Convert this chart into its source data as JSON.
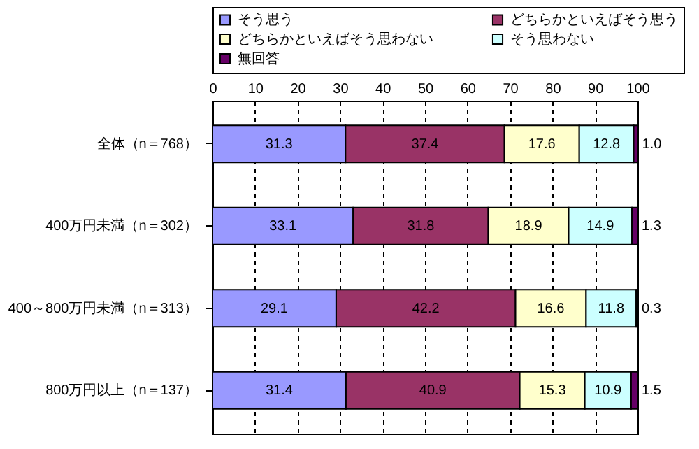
{
  "chart_data": {
    "type": "bar",
    "orientation": "horizontal",
    "stacked": true,
    "grid": "x",
    "legend": "top",
    "categories": [
      "全体（n＝768）",
      "400万円未満（n＝302）",
      "400～800万円未満（n＝313）",
      "800万円以上（n＝137）"
    ],
    "series": [
      {
        "name": "そう思う",
        "color": "#9999ff",
        "values": [
          31.3,
          33.1,
          29.1,
          31.4
        ],
        "value_labels": [
          "31.3",
          "33.1",
          "29.1",
          "31.4"
        ]
      },
      {
        "name": "どちらかといえばそう思う",
        "color": "#993366",
        "values": [
          37.4,
          31.8,
          42.2,
          40.9
        ],
        "value_labels": [
          "37.4",
          "31.8",
          "42.2",
          "40.9"
        ]
      },
      {
        "name": "どちらかといえばそう思わない",
        "color": "#ffffcc",
        "values": [
          17.6,
          18.9,
          16.6,
          15.3
        ],
        "value_labels": [
          "17.6",
          "18.9",
          "16.6",
          "15.3"
        ]
      },
      {
        "name": "そう思わない",
        "color": "#ccffff",
        "values": [
          12.8,
          14.9,
          11.8,
          10.9
        ],
        "value_labels": [
          "12.8",
          "14.9",
          "11.8",
          "10.9"
        ]
      },
      {
        "name": "無回答",
        "color": "#660066",
        "values": [
          1.0,
          1.3,
          0.3,
          1.5
        ],
        "value_labels": [
          "1.0",
          "1.3",
          "0.3",
          "1.5"
        ]
      }
    ],
    "xlim": [
      0,
      100
    ],
    "xticks": [
      0,
      10,
      20,
      30,
      40,
      50,
      60,
      70,
      80,
      90,
      100
    ]
  }
}
